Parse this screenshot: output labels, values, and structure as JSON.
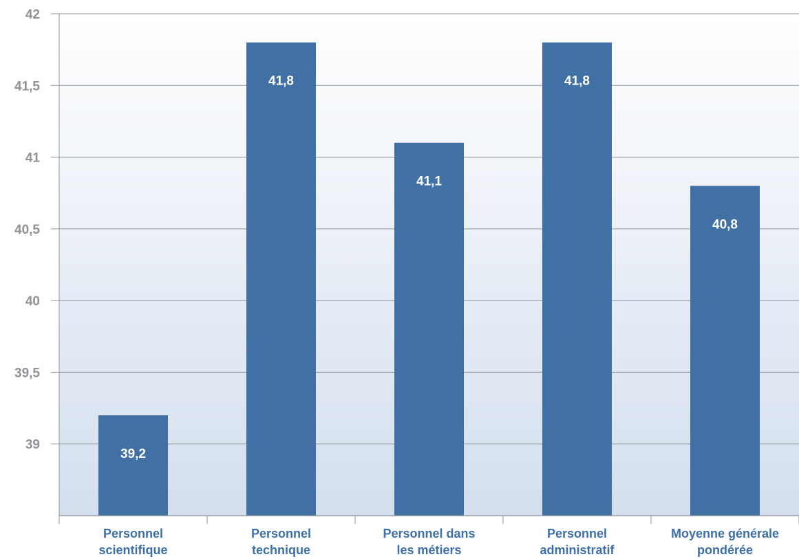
{
  "chart_data": {
    "type": "bar",
    "categories": [
      [
        "Personnel",
        "scientifique"
      ],
      [
        "Personnel",
        "technique"
      ],
      [
        "Personnel dans",
        "les métiers"
      ],
      [
        "Personnel",
        "administratif"
      ],
      [
        "Moyenne générale",
        "pondérée"
      ]
    ],
    "values": [
      39.2,
      41.8,
      41.1,
      41.8,
      40.8
    ],
    "data_labels": [
      "39,2",
      "41,8",
      "41,1",
      "41,8",
      "40,8"
    ],
    "ylim": [
      38.5,
      42
    ],
    "yticks": [
      {
        "value": 39,
        "label": "39"
      },
      {
        "value": 39.5,
        "label": "39,5"
      },
      {
        "value": 40,
        "label": "40"
      },
      {
        "value": 40.5,
        "label": "40,5"
      },
      {
        "value": 41,
        "label": "41"
      },
      {
        "value": 41.5,
        "label": "41,5"
      },
      {
        "value": 42,
        "label": "42"
      }
    ],
    "grid": true,
    "colors": {
      "bar": "#4170a5",
      "grid": "#8f949a",
      "category_text": "#3d6fa6",
      "tick_text": "#8e9196",
      "plot_bg_top": "#ffffff",
      "plot_bg_bottom": "#d3deee"
    }
  }
}
